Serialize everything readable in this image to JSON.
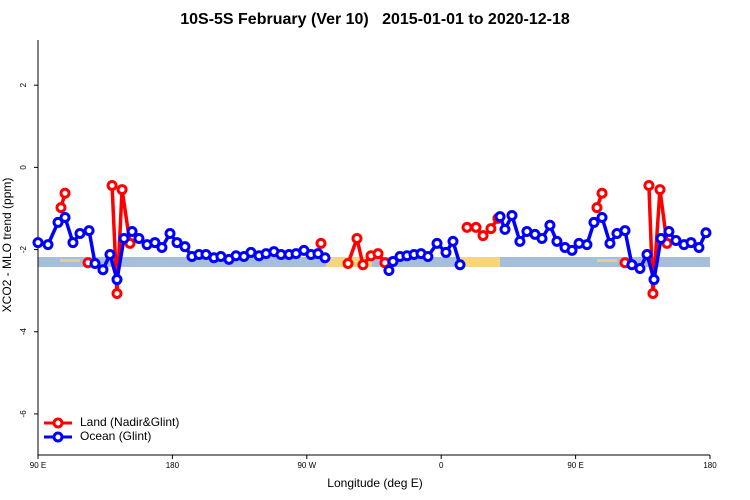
{
  "chart_data": {
    "type": "line",
    "title": "10S-5S February (Ver 10)   2015-01-01 to 2020-12-18",
    "x_label": "Longitude (deg E)",
    "y_label": "XCO2 - MLO trend (ppm)",
    "xlim": [
      90,
      540
    ],
    "xticks": [
      {
        "value": 90,
        "label": "90 E"
      },
      180,
      {
        "value": 270,
        "label": "90 W"
      },
      {
        "value": 360,
        "label": "0"
      },
      {
        "value": 450,
        "label": "90 E"
      },
      {
        "value": 540,
        "label": "180"
      }
    ],
    "ylim": [
      -7,
      3.1
    ],
    "yticks": [
      2,
      0,
      -2,
      -4,
      -6
    ],
    "legend": "bottom-left",
    "series": [
      {
        "name": "Land (Nadir&Glint)",
        "color": "#ff0000",
        "x": [
          105.4,
          108.1,
          null,
          123.5,
          null,
          139.6,
          142.9,
          146.3,
          151.6,
          null,
          279.5,
          null,
          297.6,
          303.6,
          307.6,
          313.0,
          317.7,
          322.3,
          null,
          377.3,
          383.3,
          388.0,
          393.3,
          398.0,
          null,
          464.3,
          467.7,
          null,
          483.1,
          null,
          499.1,
          501.8,
          506.5,
          511.2
        ],
        "values": [
          -0.98,
          -0.63,
          null,
          -2.32,
          null,
          -0.44,
          -3.07,
          -0.54,
          -1.85,
          null,
          -1.85,
          null,
          -2.34,
          -1.73,
          -2.37,
          -2.15,
          -2.1,
          -2.32,
          null,
          -1.46,
          -1.46,
          -1.66,
          -1.49,
          -1.24,
          null,
          -0.98,
          -0.63,
          null,
          -2.32,
          null,
          -0.44,
          -3.07,
          -0.54,
          -1.85
        ]
      },
      {
        "name": "Ocean (Glint)",
        "color": "#0000ff",
        "x": [
          90,
          96.7,
          103.4,
          108.1,
          113.4,
          118.1,
          124.2,
          128.2,
          133.5,
          138.2,
          142.9,
          147.6,
          153.0,
          157.6,
          163.0,
          168.3,
          173.0,
          178.4,
          183.1,
          188.4,
          193.1,
          197.8,
          202.5,
          207.8,
          212.5,
          217.9,
          222.6,
          227.9,
          232.6,
          238.0,
          242.7,
          248.0,
          252.7,
          258.1,
          262.8,
          268.1,
          272.8,
          277.5,
          282.2,
          null,
          325.0,
          327.7,
          332.4,
          337.1,
          341.8,
          346.5,
          351.1,
          357.2,
          363.2,
          367.9,
          372.6,
          null,
          399.4,
          402.7,
          407.4,
          412.7,
          417.4,
          422.8,
          427.5,
          432.8,
          437.5,
          442.9,
          447.6,
          452.3,
          457.6,
          462.3,
          467.7,
          473.0,
          477.7,
          483.1,
          487.7,
          493.1,
          497.8,
          502.5,
          507.2,
          512.5,
          517.2,
          522.6,
          527.3,
          532.6,
          537.3
        ],
        "values": [
          -1.83,
          -1.88,
          -1.34,
          -1.22,
          -1.83,
          -1.61,
          -1.54,
          -2.34,
          -2.49,
          -2.12,
          -2.73,
          -1.73,
          -1.56,
          -1.73,
          -1.88,
          -1.83,
          -1.95,
          -1.61,
          -1.83,
          -1.93,
          -2.17,
          -2.12,
          -2.12,
          -2.2,
          -2.17,
          -2.24,
          -2.15,
          -2.17,
          -2.07,
          -2.15,
          -2.1,
          -2.05,
          -2.12,
          -2.12,
          -2.1,
          -2.02,
          -2.12,
          -2.1,
          -2.2,
          null,
          -2.51,
          -2.29,
          -2.17,
          -2.15,
          -2.12,
          -2.1,
          -2.17,
          -1.85,
          -2.07,
          -1.8,
          -2.37,
          null,
          -1.2,
          -1.51,
          -1.17,
          -1.8,
          -1.56,
          -1.63,
          -1.73,
          -1.41,
          -1.8,
          -1.95,
          -2.02,
          -1.85,
          -1.88,
          -1.34,
          -1.22,
          -1.85,
          -1.61,
          -1.54,
          -2.37,
          -2.46,
          -2.12,
          -2.73,
          -1.73,
          -1.56,
          -1.78,
          -1.88,
          -1.83,
          -1.95,
          -1.59
        ]
      }
    ]
  }
}
